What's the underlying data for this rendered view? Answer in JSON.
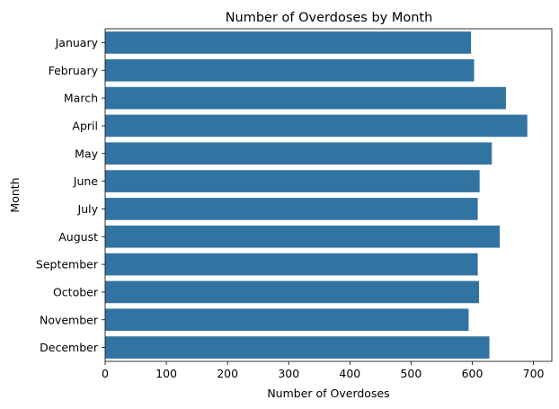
{
  "chart_data": {
    "type": "bar",
    "orientation": "horizontal",
    "title": "Number of Overdoses by Month",
    "xlabel": "Number of Overdoses",
    "ylabel": "Month",
    "categories": [
      "January",
      "February",
      "March",
      "April",
      "May",
      "June",
      "July",
      "August",
      "September",
      "October",
      "November",
      "December"
    ],
    "values": [
      598,
      603,
      655,
      690,
      632,
      612,
      609,
      645,
      609,
      611,
      594,
      628
    ],
    "xlim": [
      0,
      730
    ],
    "xticks": [
      0,
      100,
      200,
      300,
      400,
      500,
      600,
      700
    ],
    "grid": false,
    "bar_color": "#3274a1"
  }
}
